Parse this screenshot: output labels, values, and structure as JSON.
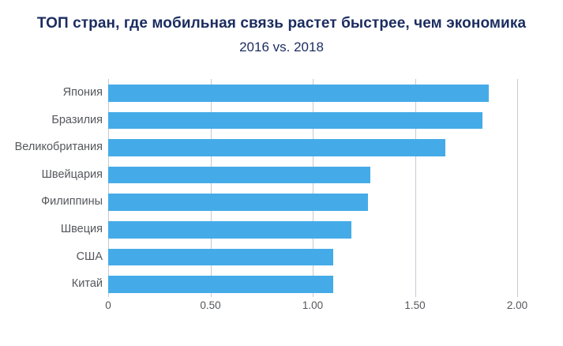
{
  "chart_data": {
    "type": "bar",
    "orientation": "horizontal",
    "title": "ТОП стран, где мобильная связь растет быстрее, чем экономика",
    "subtitle": "2016 vs. 2018",
    "categories": [
      "Япония",
      "Бразилия",
      "Великобритания",
      "Швейцария",
      "Филиппины",
      "Швеция",
      "США",
      "Китай"
    ],
    "values": [
      1.86,
      1.83,
      1.65,
      1.28,
      1.27,
      1.19,
      1.1,
      1.1
    ],
    "xlim": [
      0,
      2.0
    ],
    "x_ticks": [
      {
        "value": 0,
        "label": "0"
      },
      {
        "value": 0.5,
        "label": "0.50"
      },
      {
        "value": 1.0,
        "label": "1.00"
      },
      {
        "value": 1.5,
        "label": "1.50"
      },
      {
        "value": 2.0,
        "label": "2.00"
      }
    ],
    "grid": true,
    "legend": false,
    "colors": {
      "bar": "#45ABE8",
      "gridline": "#C7C9D1",
      "title_text": "#1B2C5F",
      "axis_text": "#55575C",
      "background": "#FFFFFF"
    }
  }
}
